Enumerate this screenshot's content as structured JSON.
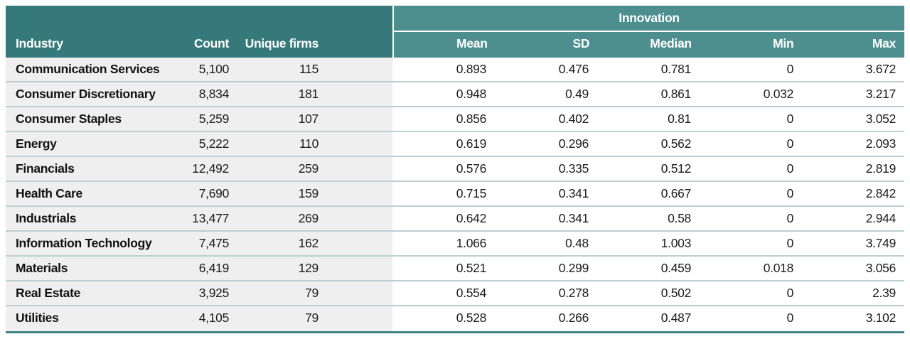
{
  "table": {
    "columns": {
      "industry": "Industry",
      "count": "Count",
      "unique_firms": "Unique firms"
    },
    "innovation_header": "Innovation",
    "innovation_columns": [
      "Mean",
      "SD",
      "Median",
      "Min",
      "Max"
    ],
    "rows": [
      {
        "industry": "Communication Services",
        "count": "5,100",
        "unique_firms": "115",
        "mean": "0.893",
        "sd": "0.476",
        "median": "0.781",
        "min": "0",
        "max": "3.672"
      },
      {
        "industry": "Consumer Discretionary",
        "count": "8,834",
        "unique_firms": "181",
        "mean": "0.948",
        "sd": "0.49",
        "median": "0.861",
        "min": "0.032",
        "max": "3.217"
      },
      {
        "industry": "Consumer Staples",
        "count": "5,259",
        "unique_firms": "107",
        "mean": "0.856",
        "sd": "0.402",
        "median": "0.81",
        "min": "0",
        "max": "3.052"
      },
      {
        "industry": "Energy",
        "count": "5,222",
        "unique_firms": "110",
        "mean": "0.619",
        "sd": "0.296",
        "median": "0.562",
        "min": "0",
        "max": "2.093"
      },
      {
        "industry": "Financials",
        "count": "12,492",
        "unique_firms": "259",
        "mean": "0.576",
        "sd": "0.335",
        "median": "0.512",
        "min": "0",
        "max": "2.819"
      },
      {
        "industry": "Health Care",
        "count": "7,690",
        "unique_firms": "159",
        "mean": "0.715",
        "sd": "0.341",
        "median": "0.667",
        "min": "0",
        "max": "2.842"
      },
      {
        "industry": "Industrials",
        "count": "13,477",
        "unique_firms": "269",
        "mean": "0.642",
        "sd": "0.341",
        "median": "0.58",
        "min": "0",
        "max": "2.944"
      },
      {
        "industry": "Information Technology",
        "count": "7,475",
        "unique_firms": "162",
        "mean": "1.066",
        "sd": "0.48",
        "median": "1.003",
        "min": "0",
        "max": "3.749"
      },
      {
        "industry": "Materials",
        "count": "6,419",
        "unique_firms": "129",
        "mean": "0.521",
        "sd": "0.299",
        "median": "0.459",
        "min": "0.018",
        "max": "3.056"
      },
      {
        "industry": "Real Estate",
        "count": "3,925",
        "unique_firms": "79",
        "mean": "0.554",
        "sd": "0.278",
        "median": "0.502",
        "min": "0",
        "max": "2.39"
      },
      {
        "industry": "Utilities",
        "count": "4,105",
        "unique_firms": "79",
        "mean": "0.528",
        "sd": "0.266",
        "median": "0.487",
        "min": "0",
        "max": "3.102"
      }
    ]
  },
  "colors": {
    "header_dark_teal": "#35797A",
    "header_light_teal": "#4D8F8F",
    "row_left_bg": "#EFEFEF",
    "row_right_bg": "#FFFFFF",
    "row_separator": "#BBCFCF",
    "bottom_rule_teal": "#3F8384",
    "header_text": "#FFFFFF",
    "body_text": "#1C1C1C"
  }
}
